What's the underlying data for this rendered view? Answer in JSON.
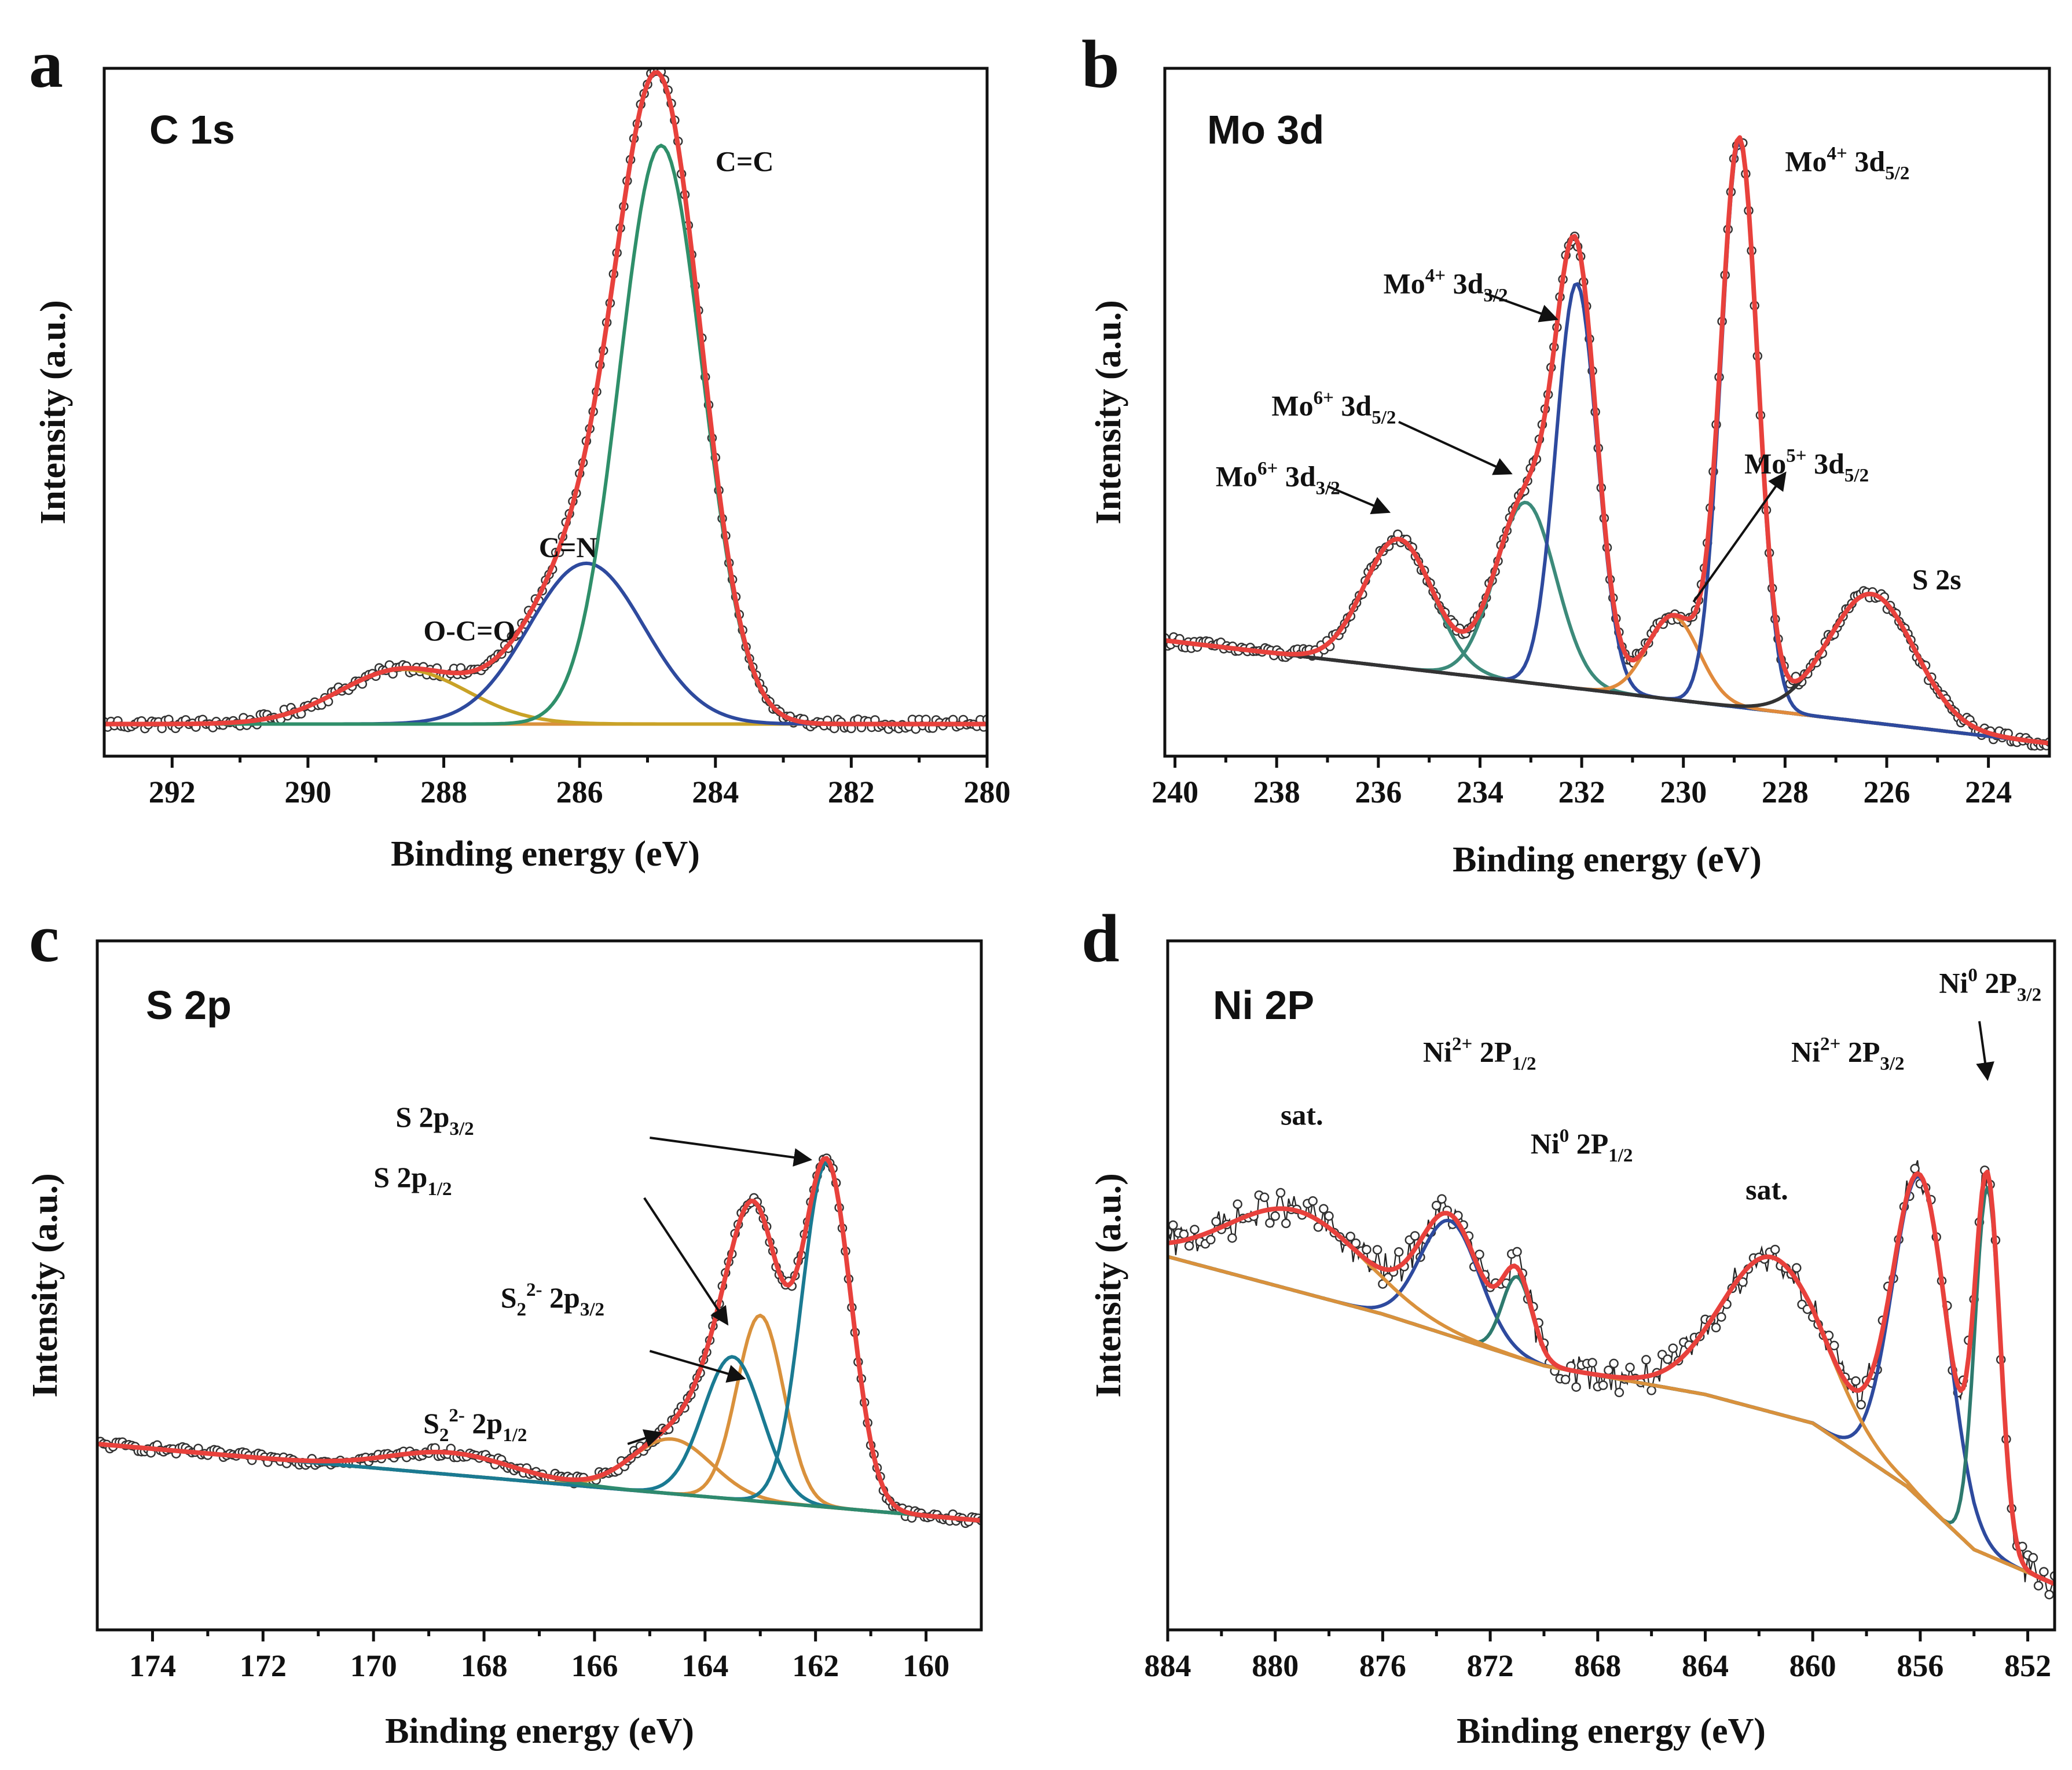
{
  "chart_data": [
    {
      "id": "a",
      "panel_letter": "a",
      "type": "line",
      "title": "C 1s",
      "xlabel": "Binding energy (eV)",
      "ylabel": "Intensity (a.u.)",
      "xlim": [
        293,
        280
      ],
      "x_ticks": [
        292,
        290,
        288,
        286,
        284,
        282,
        280
      ],
      "ylim": [
        -0.05,
        1.02
      ],
      "background": {
        "type": "linear",
        "start": 0.0,
        "end": 0.0
      },
      "noise": 0.008,
      "points": 260,
      "raw_style": "dots",
      "series": [
        {
          "name": "O-C=O",
          "color": "#c9a227",
          "center": 288.6,
          "amplitude": 0.085,
          "fwhm": 2.2
        },
        {
          "name": "C=N",
          "color": "#2e4a9e",
          "center": 285.9,
          "amplitude": 0.25,
          "fwhm": 2.0
        },
        {
          "name": "C=C",
          "color": "#2f8f6a",
          "center": 284.8,
          "amplitude": 0.9,
          "fwhm": 1.45
        }
      ],
      "envelope": {
        "name": "Fit",
        "color": "#e8413c"
      },
      "annotations": [
        {
          "x": 284.0,
          "y": 0.86,
          "parts": [
            {
              "t": "C=C"
            }
          ]
        },
        {
          "x": 286.6,
          "y": 0.26,
          "parts": [
            {
              "t": "C=N"
            }
          ]
        },
        {
          "x": 288.3,
          "y": 0.13,
          "parts": [
            {
              "t": "O-C=O"
            }
          ]
        }
      ],
      "arrows": []
    },
    {
      "id": "b",
      "panel_letter": "b",
      "type": "line",
      "title": "Mo 3d",
      "xlabel": "Binding energy (eV)",
      "ylabel": "Intensity (a.u.)",
      "xlim": [
        240.2,
        222.8
      ],
      "x_ticks": [
        240,
        238,
        236,
        234,
        232,
        230,
        228,
        226,
        224
      ],
      "ylim": [
        -0.02,
        1.05
      ],
      "background": {
        "type": "linear",
        "start": 0.16,
        "end": 0.0
      },
      "noise": 0.008,
      "points": 300,
      "raw_style": "dots",
      "series": [
        {
          "name": "Mo6+ 3d3/2",
          "color": "#3c8a7a",
          "center": 235.6,
          "amplitude": 0.2,
          "fwhm": 1.6
        },
        {
          "name": "Mo6+ 3d5/2",
          "color": "#3c8a7a",
          "center": 233.1,
          "amplitude": 0.28,
          "fwhm": 1.4
        },
        {
          "name": "Mo4+ 3d3/2",
          "color": "#2e4a9e",
          "center": 232.1,
          "amplitude": 0.63,
          "fwhm": 0.95
        },
        {
          "name": "Mo5+ 3d5/2",
          "color": "#e08a3c",
          "center": 230.2,
          "amplitude": 0.13,
          "fwhm": 1.2
        },
        {
          "name": "Mo4+ 3d5/2",
          "color": "#2e4a9e",
          "center": 228.9,
          "amplitude": 0.88,
          "fwhm": 0.85
        },
        {
          "name": "S 2s",
          "color": "#333333",
          "center": 226.3,
          "amplitude": 0.2,
          "fwhm": 2.0
        }
      ],
      "envelope": {
        "name": "Fit",
        "color": "#e8413c"
      },
      "annotations": [
        {
          "x": 228.0,
          "y": 0.89,
          "parts": [
            {
              "t": "Mo"
            },
            {
              "t": "4+",
              "s": "sup"
            },
            {
              "t": " 3d"
            },
            {
              "t": "5/2",
              "s": "sub"
            }
          ]
        },
        {
          "x": 235.9,
          "y": 0.7,
          "parts": [
            {
              "t": "Mo"
            },
            {
              "t": "4+",
              "s": "sup"
            },
            {
              "t": " 3d"
            },
            {
              "t": "3/2",
              "s": "sub"
            }
          ]
        },
        {
          "x": 238.1,
          "y": 0.51,
          "parts": [
            {
              "t": "Mo"
            },
            {
              "t": "6+",
              "s": "sup"
            },
            {
              "t": " 3d"
            },
            {
              "t": "5/2",
              "s": "sub"
            }
          ]
        },
        {
          "x": 239.2,
          "y": 0.4,
          "parts": [
            {
              "t": "Mo"
            },
            {
              "t": "6+",
              "s": "sup"
            },
            {
              "t": " 3d"
            },
            {
              "t": "3/2",
              "s": "sub"
            }
          ]
        },
        {
          "x": 228.8,
          "y": 0.42,
          "parts": [
            {
              "t": "Mo"
            },
            {
              "t": "5+",
              "s": "sup"
            },
            {
              "t": " 3d"
            },
            {
              "t": "5/2",
              "s": "sub"
            }
          ]
        },
        {
          "x": 225.5,
          "y": 0.24,
          "parts": [
            {
              "t": "S 2s"
            }
          ]
        }
      ],
      "arrows": [
        {
          "from": [
            233.9,
            0.7
          ],
          "to": [
            232.5,
            0.66
          ]
        },
        {
          "from": [
            235.6,
            0.5
          ],
          "to": [
            233.4,
            0.42
          ]
        },
        {
          "from": [
            237.0,
            0.4
          ],
          "to": [
            235.8,
            0.36
          ]
        },
        {
          "from": [
            229.8,
            0.22
          ],
          "to": [
            228.0,
            0.42
          ]
        }
      ]
    },
    {
      "id": "c",
      "panel_letter": "c",
      "type": "line",
      "title": "S 2p",
      "xlabel": "Binding energy (eV)",
      "ylabel": "Intensity (a.u.)",
      "xlim": [
        175,
        159
      ],
      "x_ticks": [
        174,
        172,
        170,
        168,
        166,
        164,
        162,
        160
      ],
      "ylim": [
        -0.26,
        1.0
      ],
      "background": {
        "type": "linear",
        "start": 0.08,
        "end": -0.06
      },
      "noise": 0.008,
      "points": 280,
      "raw_style": "dots",
      "series": [
        {
          "name": "S2 2- 2p1/2",
          "color": "#d9913c",
          "center": 164.6,
          "amplitude": 0.1,
          "fwhm": 1.7
        },
        {
          "name": "S2 2- 2p3/2",
          "color": "#d9913c",
          "center": 163.0,
          "amplitude": 0.34,
          "fwhm": 1.0
        },
        {
          "name": "S 2p1/2",
          "color": "#1a7a92",
          "center": 163.5,
          "amplitude": 0.26,
          "fwhm": 1.25
        },
        {
          "name": "S 2p3/2",
          "color": "#1a7a92",
          "center": 161.8,
          "amplitude": 0.63,
          "fwhm": 1.05
        },
        {
          "name": "satellite",
          "color": "#2e8a6e",
          "center": 168.6,
          "amplitude": 0.04,
          "fwhm": 2.6
        }
      ],
      "envelope": {
        "name": "Fit",
        "color": "#e8413c"
      },
      "annotations": [
        {
          "x": 169.6,
          "y": 0.66,
          "parts": [
            {
              "t": "S 2p"
            },
            {
              "t": "3/2",
              "s": "sub"
            }
          ]
        },
        {
          "x": 170.0,
          "y": 0.55,
          "parts": [
            {
              "t": "S 2p"
            },
            {
              "t": "1/2",
              "s": "sub"
            }
          ]
        },
        {
          "x": 167.7,
          "y": 0.33,
          "parts": [
            {
              "t": "S"
            },
            {
              "t": "2",
              "s": "sub"
            },
            {
              "t": "2-",
              "s": "sup"
            },
            {
              "t": " 2p"
            },
            {
              "t": "3/2",
              "s": "sub"
            }
          ]
        },
        {
          "x": 169.1,
          "y": 0.1,
          "parts": [
            {
              "t": "S"
            },
            {
              "t": "2",
              "s": "sub"
            },
            {
              "t": "2-",
              "s": "sup"
            },
            {
              "t": " 2p"
            },
            {
              "t": "1/2",
              "s": "sub"
            }
          ]
        }
      ],
      "arrows": [
        {
          "from": [
            165.0,
            0.64
          ],
          "to": [
            162.1,
            0.6
          ]
        },
        {
          "from": [
            165.1,
            0.53
          ],
          "to": [
            163.6,
            0.3
          ]
        },
        {
          "from": [
            165.0,
            0.25
          ],
          "to": [
            163.3,
            0.2
          ]
        },
        {
          "from": [
            165.4,
            0.08
          ],
          "to": [
            164.8,
            0.1
          ]
        }
      ]
    },
    {
      "id": "d",
      "panel_letter": "d",
      "type": "line",
      "title": "Ni 2P",
      "xlabel": "Binding energy (eV)",
      "ylabel": "Intensity (a.u.)",
      "xlim": [
        884,
        851
      ],
      "x_ticks": [
        884,
        880,
        876,
        872,
        868,
        864,
        860,
        856,
        852
      ],
      "ylim": [
        -0.06,
        1.14
      ],
      "background": {
        "type": "ni",
        "points": [
          [
            884,
            0.59
          ],
          [
            876,
            0.49
          ],
          [
            870,
            0.4
          ],
          [
            864,
            0.35
          ],
          [
            860,
            0.3
          ],
          [
            856.5,
            0.19
          ],
          [
            854,
            0.08
          ],
          [
            851,
            0.02
          ]
        ]
      },
      "noise": 0.03,
      "points": 330,
      "raw_style": "jagged",
      "series": [
        {
          "name": "Ni2+ 2P1/2",
          "color": "#2e4a9e",
          "center": 873.5,
          "amplitude": 0.2,
          "fwhm": 2.6
        },
        {
          "name": "Ni0 2P1/2",
          "color": "#2e7a6e",
          "center": 871.0,
          "amplitude": 0.14,
          "fwhm": 1.3
        },
        {
          "name": "Ni2+ 2P3/2",
          "color": "#2e4a9e",
          "center": 856.0,
          "amplitude": 0.56,
          "fwhm": 2.4
        },
        {
          "name": "Ni0 2P3/2",
          "color": "#2e7a6e",
          "center": 853.5,
          "amplitude": 0.64,
          "fwhm": 1.1
        },
        {
          "name": "sat. 1",
          "color": "#d9913c",
          "center": 879.2,
          "amplitude": 0.14,
          "fwhm": 6.0
        },
        {
          "name": "sat. 2",
          "color": "#d9913c",
          "center": 861.5,
          "amplitude": 0.27,
          "fwhm": 4.5
        }
      ],
      "envelope": {
        "name": "Fit",
        "color": "#e8413c"
      },
      "annotations": [
        {
          "x": 879.8,
          "y": 0.82,
          "parts": [
            {
              "t": "sat."
            }
          ]
        },
        {
          "x": 874.5,
          "y": 0.93,
          "parts": [
            {
              "t": "Ni"
            },
            {
              "t": "2+",
              "s": "sup"
            },
            {
              "t": " 2P"
            },
            {
              "t": "1/2",
              "s": "sub"
            }
          ]
        },
        {
          "x": 870.5,
          "y": 0.77,
          "parts": [
            {
              "t": "Ni"
            },
            {
              "t": "0",
              "s": "sup"
            },
            {
              "t": " 2P"
            },
            {
              "t": "1/2",
              "s": "sub"
            }
          ]
        },
        {
          "x": 862.5,
          "y": 0.69,
          "parts": [
            {
              "t": "sat."
            }
          ]
        },
        {
          "x": 860.8,
          "y": 0.93,
          "parts": [
            {
              "t": "Ni"
            },
            {
              "t": "2+",
              "s": "sup"
            },
            {
              "t": " 2P"
            },
            {
              "t": "3/2",
              "s": "sub"
            }
          ]
        },
        {
          "x": 855.3,
          "y": 1.05,
          "parts": [
            {
              "t": "Ni"
            },
            {
              "t": "0",
              "s": "sup"
            },
            {
              "t": " 2P"
            },
            {
              "t": "3/2",
              "s": "sub"
            }
          ]
        }
      ],
      "arrows": [
        {
          "from": [
            853.8,
            1.0
          ],
          "to": [
            853.5,
            0.9
          ]
        }
      ]
    }
  ]
}
